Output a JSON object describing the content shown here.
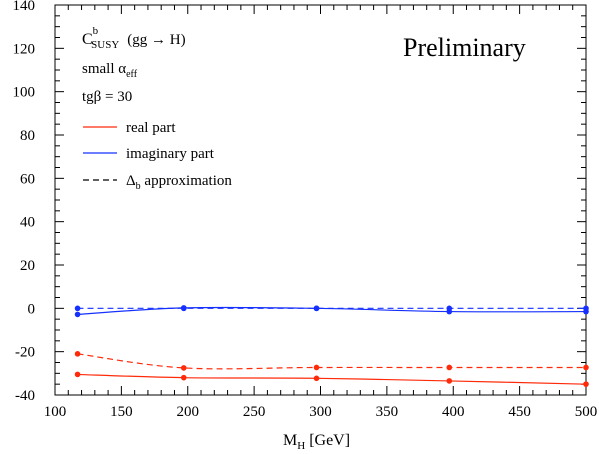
{
  "chart_data": {
    "type": "line",
    "title": "",
    "xlabel": "M",
    "xlabel_sub": "H",
    "xlabel_unit": "[GeV]",
    "ylabel": "",
    "xlim": [
      100,
      500
    ],
    "ylim": [
      -40,
      140
    ],
    "xticks": [
      100,
      150,
      200,
      250,
      300,
      350,
      400,
      450,
      500
    ],
    "yticks": [
      -40,
      -20,
      0,
      20,
      40,
      60,
      80,
      100,
      120,
      140
    ],
    "grid": false,
    "annotations": {
      "preliminary": "Preliminary",
      "quantity": {
        "main": "C",
        "sup": "b",
        "sub": "SUSY",
        "process": "(gg → H)"
      },
      "scenario": {
        "prefix": "small α",
        "sub": "eff"
      },
      "tgbeta": "tgβ = 30"
    },
    "legend": {
      "position": "top-left",
      "entries": [
        {
          "label": "real part",
          "color": "#ff2a0a",
          "style": "solid"
        },
        {
          "label": "imaginary part",
          "color": "#1530ff",
          "style": "solid"
        },
        {
          "label_prefix": "Δ",
          "label_sub": "b",
          "label_suffix": " approximation",
          "color": "#000000",
          "style": "dashed"
        }
      ]
    },
    "series": [
      {
        "name": "real part",
        "color": "#ff2a0a",
        "style": "solid",
        "x": [
          117,
          197,
          297,
          397,
          500
        ],
        "y": [
          -30.5,
          -32.0,
          -32.3,
          -33.5,
          -35.0
        ]
      },
      {
        "name": "imaginary part",
        "color": "#1530ff",
        "style": "solid",
        "x": [
          117,
          197,
          297,
          397,
          500
        ],
        "y": [
          -2.8,
          0.2,
          0.0,
          -1.5,
          -1.5
        ]
      },
      {
        "name": "Δb approximation (real part)",
        "color": "#ff2a0a",
        "style": "dashed",
        "x": [
          117,
          197,
          297,
          397,
          500
        ],
        "y": [
          -21.0,
          -27.5,
          -27.3,
          -27.3,
          -27.3
        ]
      },
      {
        "name": "Δb approximation (imaginary part)",
        "color": "#1530ff",
        "style": "dashed",
        "x": [
          117,
          197,
          297,
          397,
          500
        ],
        "y": [
          0.0,
          0.0,
          0.0,
          0.0,
          0.0
        ]
      }
    ]
  }
}
